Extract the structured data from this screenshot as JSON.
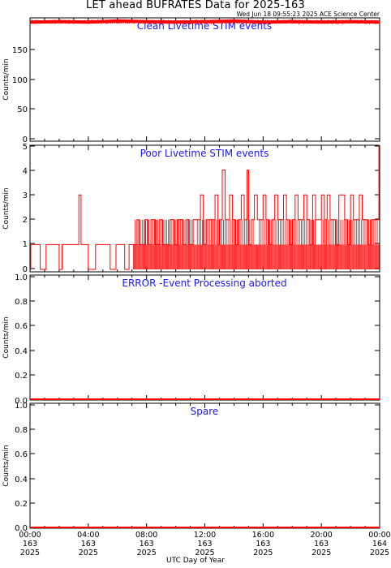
{
  "title": "LET ahead BUFRATES Data for 2025-163",
  "stamp": "Wed Jun 18 09:55:23 2025 ACE Science Center",
  "xlabel": "UTC Day of Year",
  "colors": {
    "data": "#ff0000",
    "panel_title": "#1a1ae6",
    "axes": "#000000"
  },
  "x_ticks": [
    {
      "time": "00:00",
      "doy": "163",
      "year": "2025"
    },
    {
      "time": "04:00",
      "doy": "163",
      "year": "2025"
    },
    {
      "time": "08:00",
      "doy": "163",
      "year": "2025"
    },
    {
      "time": "12:00",
      "doy": "163",
      "year": "2025"
    },
    {
      "time": "16:00",
      "doy": "163",
      "year": "2025"
    },
    {
      "time": "20:00",
      "doy": "163",
      "year": "2025"
    },
    {
      "time": "00:00",
      "doy": "164",
      "year": "2025"
    }
  ],
  "chart_data": [
    {
      "type": "line",
      "title": "Clean Livetime STIM events",
      "ylabel": "Counts/min",
      "ylim": [
        0,
        195
      ],
      "yticks": [
        "0",
        "50",
        "100",
        "150"
      ],
      "xlim_hours": [
        0,
        24
      ],
      "series": [
        {
          "x_hours": [
            0,
            2,
            4,
            6,
            8,
            10,
            12,
            14,
            16,
            18,
            20,
            22,
            24
          ],
          "values": [
            188,
            189,
            188,
            190,
            189,
            188,
            189,
            190,
            188,
            189,
            188,
            189,
            188
          ]
        }
      ]
    },
    {
      "type": "line",
      "title": "Poor Livetime STIM events",
      "ylabel": "Counts/min",
      "ylim": [
        0,
        5
      ],
      "yticks": [
        "0",
        "1",
        "2",
        "3",
        "4",
        "5"
      ],
      "xlim_hours": [
        0,
        24
      ],
      "series": [
        {
          "x_hours": [
            0.05,
            0.3,
            0.7,
            1.1,
            1.3,
            1.6,
            2.0,
            2.2,
            2.5,
            2.7,
            3.0,
            3.2,
            3.35,
            3.5,
            4.0,
            4.5,
            4.8,
            5.1,
            5.5,
            5.9,
            6.2,
            6.5,
            6.8,
            7.1,
            7.35,
            7.5,
            7.7,
            7.9,
            8.1,
            8.3,
            8.6,
            8.9,
            9.1,
            9.4,
            9.6,
            9.9,
            10.1,
            10.3,
            10.5,
            10.7,
            10.9,
            11.2,
            11.5,
            11.7,
            11.9,
            12.1,
            12.4,
            12.7,
            12.9,
            13.0,
            13.2,
            13.4,
            13.7,
            13.9,
            14.1,
            14.3,
            14.5,
            14.7,
            14.9,
            15.0,
            15.2,
            15.4,
            15.6,
            15.8,
            16.0,
            16.2,
            16.4,
            16.6,
            16.8,
            17.0,
            17.2,
            17.4,
            17.6,
            17.8,
            18.0,
            18.2,
            18.4,
            18.6,
            18.8,
            19.0,
            19.2,
            19.4,
            19.6,
            19.8,
            20.0,
            20.2,
            20.4,
            20.6,
            20.8,
            21.0,
            21.2,
            21.4,
            21.6,
            21.8,
            22.0,
            22.2,
            22.4,
            22.6,
            22.8,
            23.0,
            23.2,
            23.4,
            23.6,
            23.8,
            23.95
          ],
          "values": [
            1,
            1,
            0,
            1,
            1,
            1,
            0,
            1,
            1,
            1,
            1,
            1,
            3,
            1,
            0,
            1,
            1,
            1,
            0,
            1,
            1,
            0,
            1,
            1,
            2,
            1,
            1,
            2,
            1,
            2,
            1,
            2,
            1,
            1,
            2,
            1,
            2,
            2,
            1,
            2,
            1,
            2,
            2,
            3,
            1,
            2,
            2,
            3,
            1,
            2,
            4,
            2,
            3,
            2,
            1,
            2,
            3,
            2,
            4,
            1,
            2,
            3,
            2,
            2,
            3,
            2,
            1,
            2,
            3,
            2,
            2,
            3,
            2,
            1,
            2,
            3,
            2,
            2,
            3,
            2,
            1,
            3,
            2,
            2,
            3,
            2,
            3,
            2,
            2,
            1,
            3,
            3,
            2,
            1,
            3,
            2,
            2,
            3,
            2,
            2,
            1,
            2,
            2,
            2,
            5
          ]
        }
      ]
    },
    {
      "type": "line",
      "title": "ERROR -Event Processing aborted",
      "ylabel": "Counts/min",
      "ylim": [
        0,
        1
      ],
      "yticks": [
        "0.0",
        "0.2",
        "0.4",
        "0.6",
        "0.8",
        "1.0"
      ],
      "xlim_hours": [
        0,
        24
      ],
      "series": [
        {
          "x_hours": [
            0,
            24
          ],
          "values": [
            0,
            0
          ]
        }
      ]
    },
    {
      "type": "line",
      "title": "Spare",
      "ylabel": "Counts/min",
      "ylim": [
        0,
        1
      ],
      "yticks": [
        "0.0",
        "0.2",
        "0.4",
        "0.6",
        "0.8",
        "1.0"
      ],
      "xlim_hours": [
        0,
        24
      ],
      "series": [
        {
          "x_hours": [
            0,
            24
          ],
          "values": [
            0,
            0
          ]
        }
      ]
    }
  ]
}
